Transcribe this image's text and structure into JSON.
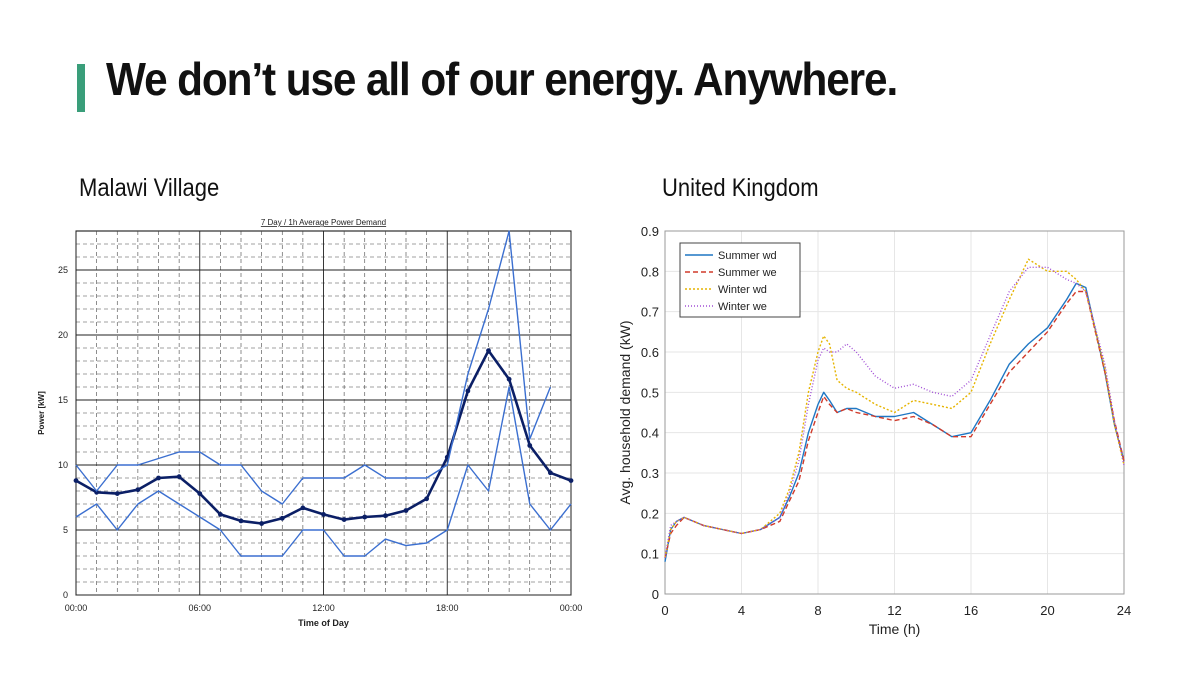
{
  "slide": {
    "title": "We don’t use all of our energy. Anywhere.",
    "accent_color": "#3a9e7a",
    "left_label": "Malawi Village",
    "right_label": "United Kingdom"
  },
  "chart_data": [
    {
      "type": "line",
      "title": "7 Day / 1h Average Power Demand",
      "xlabel": "Time of Day",
      "ylabel": "Power [kW]",
      "xlim": [
        0,
        24
      ],
      "ylim": [
        0,
        28
      ],
      "x_ticks": [
        0,
        6,
        12,
        18,
        24
      ],
      "x_tick_labels": [
        "00:00",
        "06:00",
        "12:00",
        "18:00",
        "00:00"
      ],
      "y_ticks": [
        0,
        5,
        10,
        15,
        20,
        25
      ],
      "grid": true,
      "legend": "none",
      "x": [
        0,
        1,
        2,
        3,
        4,
        5,
        6,
        7,
        8,
        9,
        10,
        11,
        12,
        13,
        14,
        15,
        16,
        17,
        18,
        19,
        20,
        21,
        22,
        23,
        24
      ],
      "series": [
        {
          "role": "average",
          "color": "#0b1f66",
          "markers": true,
          "values": [
            8.8,
            7.9,
            7.8,
            8.1,
            9.0,
            9.1,
            7.8,
            6.2,
            5.7,
            5.5,
            5.9,
            6.7,
            6.2,
            5.8,
            6.0,
            6.1,
            6.5,
            7.4,
            10.6,
            15.7,
            18.8,
            16.6,
            11.5,
            9.4,
            8.8
          ]
        },
        {
          "role": "maximum",
          "color": "#3b6fd0",
          "markers": false,
          "values": [
            10,
            8,
            10,
            10,
            10.5,
            11,
            11,
            10,
            10,
            8,
            7,
            9,
            9,
            9,
            10,
            9,
            9,
            9,
            10,
            17,
            22,
            28,
            12,
            16,
            null
          ]
        },
        {
          "role": "minimum",
          "color": "#3b6fd0",
          "markers": false,
          "values": [
            6,
            7,
            5,
            7,
            8,
            7,
            6,
            5,
            3,
            3,
            3,
            5,
            5,
            3,
            3,
            4.3,
            3.8,
            4,
            5,
            10,
            8,
            16,
            7,
            5,
            7
          ]
        }
      ]
    },
    {
      "type": "line",
      "title": "",
      "xlabel": "Time (h)",
      "ylabel": "Avg. household demand (kW)",
      "xlim": [
        0,
        24
      ],
      "ylim": [
        0,
        0.9
      ],
      "x_ticks": [
        0,
        4,
        8,
        12,
        16,
        20,
        24
      ],
      "y_ticks": [
        0,
        0.1,
        0.2,
        0.3,
        0.4,
        0.5,
        0.6,
        0.7,
        0.8,
        0.9
      ],
      "grid": true,
      "legend": "top-left",
      "series": [
        {
          "name": "Summer wd",
          "color": "#1f77c4",
          "dash": "",
          "x": [
            0,
            0.3,
            0.6,
            1,
            1.5,
            2,
            3,
            4,
            5,
            6,
            6.5,
            7,
            7.5,
            8,
            8.3,
            8.6,
            9,
            9.5,
            10,
            11,
            12,
            13,
            14,
            15,
            16,
            17,
            18,
            19,
            20,
            21,
            21.5,
            22,
            23,
            23.5,
            24
          ],
          "y": [
            0.08,
            0.16,
            0.18,
            0.19,
            0.18,
            0.17,
            0.16,
            0.15,
            0.16,
            0.19,
            0.24,
            0.3,
            0.4,
            0.47,
            0.5,
            0.48,
            0.45,
            0.46,
            0.46,
            0.44,
            0.44,
            0.45,
            0.42,
            0.39,
            0.4,
            0.48,
            0.57,
            0.62,
            0.66,
            0.73,
            0.77,
            0.76,
            0.55,
            0.42,
            0.33
          ]
        },
        {
          "name": "Summer we",
          "color": "#d03a2a",
          "dash": "5,3",
          "x": [
            0,
            0.3,
            0.6,
            1,
            1.5,
            2,
            3,
            4,
            5,
            6,
            6.5,
            7,
            7.5,
            8,
            8.3,
            8.6,
            9,
            9.5,
            10,
            11,
            12,
            13,
            14,
            15,
            16,
            17,
            18,
            19,
            20,
            21,
            21.5,
            22,
            23,
            23.5,
            24
          ],
          "y": [
            0.09,
            0.15,
            0.17,
            0.19,
            0.18,
            0.17,
            0.16,
            0.15,
            0.16,
            0.18,
            0.23,
            0.28,
            0.38,
            0.45,
            0.49,
            0.47,
            0.45,
            0.46,
            0.45,
            0.44,
            0.43,
            0.44,
            0.42,
            0.39,
            0.39,
            0.47,
            0.55,
            0.6,
            0.65,
            0.72,
            0.75,
            0.75,
            0.55,
            0.43,
            0.33
          ]
        },
        {
          "name": "Winter wd",
          "color": "#e6b400",
          "dash": "2,2",
          "x": [
            0,
            0.3,
            0.6,
            1,
            1.5,
            2,
            3,
            4,
            5,
            6,
            6.5,
            7,
            7.5,
            8,
            8.3,
            8.6,
            9,
            9.5,
            10,
            11,
            12,
            13,
            14,
            15,
            16,
            17,
            18,
            19,
            20,
            21,
            21.5,
            22,
            23,
            23.5,
            24
          ],
          "y": [
            0.09,
            0.16,
            0.18,
            0.19,
            0.18,
            0.17,
            0.16,
            0.15,
            0.16,
            0.2,
            0.26,
            0.35,
            0.5,
            0.6,
            0.64,
            0.62,
            0.53,
            0.51,
            0.5,
            0.47,
            0.45,
            0.48,
            0.47,
            0.46,
            0.5,
            0.62,
            0.73,
            0.83,
            0.8,
            0.8,
            0.78,
            0.75,
            0.56,
            0.42,
            0.32
          ]
        },
        {
          "name": "Winter we",
          "color": "#a24fd6",
          "dash": "1,2",
          "x": [
            0,
            0.3,
            0.6,
            1,
            1.5,
            2,
            3,
            4,
            5,
            6,
            6.5,
            7,
            7.5,
            8,
            8.3,
            8.6,
            9,
            9.5,
            10,
            11,
            12,
            13,
            14,
            15,
            16,
            17,
            18,
            19,
            20,
            21,
            21.5,
            22,
            23,
            23.5,
            24
          ],
          "y": [
            0.09,
            0.17,
            0.18,
            0.19,
            0.18,
            0.17,
            0.16,
            0.15,
            0.16,
            0.19,
            0.25,
            0.33,
            0.47,
            0.58,
            0.61,
            0.6,
            0.6,
            0.62,
            0.6,
            0.54,
            0.51,
            0.52,
            0.5,
            0.49,
            0.53,
            0.64,
            0.75,
            0.81,
            0.81,
            0.78,
            0.77,
            0.75,
            0.57,
            0.43,
            0.32
          ]
        }
      ]
    }
  ]
}
